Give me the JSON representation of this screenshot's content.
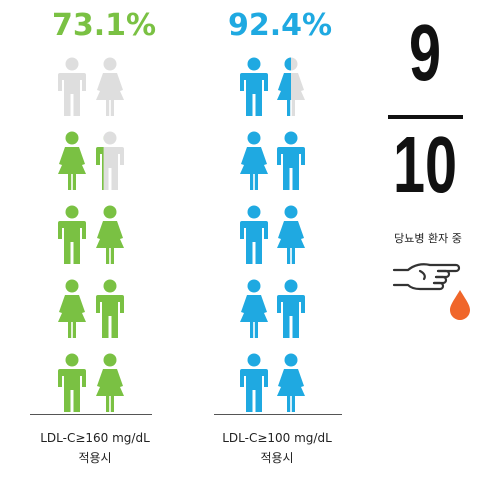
{
  "left_column": {
    "percentage": "73.1%",
    "color": "#7ac143",
    "caption_line1": "LDL-C≥160 mg/dL",
    "caption_line2": "적용시",
    "filled_fraction": 0.731
  },
  "right_column": {
    "percentage": "92.4%",
    "color": "#1fa9e1",
    "caption_line1": "LDL-C≥100 mg/dL",
    "caption_line2": "적용시",
    "filled_fraction": 0.924
  },
  "fraction": {
    "numerator": "9",
    "denominator": "10",
    "caption": "당뇨병 환자 중"
  },
  "colors": {
    "empty": "#dedede",
    "drop": "#f0662a",
    "ink": "#111111"
  },
  "icons": [
    "male-person-icon",
    "female-person-icon",
    "pointing-hand-icon",
    "blood-drop-icon"
  ]
}
